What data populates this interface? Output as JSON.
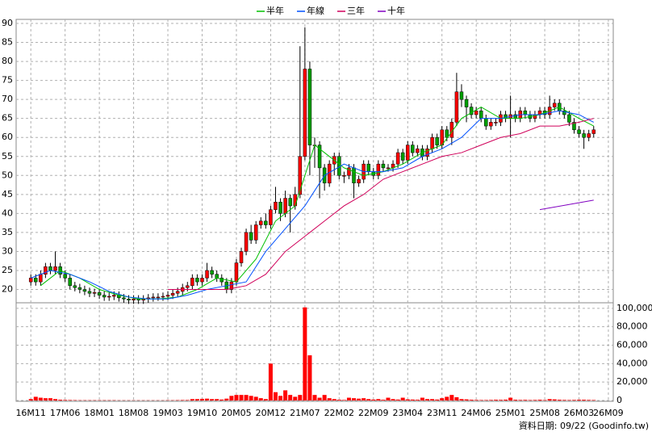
{
  "chart_data": {
    "type": "candlestick",
    "grid": true,
    "up_color": "#ff0000",
    "down_color": "#00a000",
    "volume_color": "#ff0000",
    "note": "資料日期: 09/22  (Goodinfo.tw)",
    "series": [
      {
        "name": "半年",
        "color": "#00c000",
        "x": [
          2,
          6,
          10,
          14,
          18,
          22,
          26,
          30,
          34,
          38,
          42,
          46,
          50,
          54,
          56,
          58,
          60,
          64,
          68,
          72,
          76,
          80,
          84,
          88,
          92,
          96,
          100,
          104,
          108,
          112,
          115
        ],
        "values": [
          21,
          25,
          23,
          20,
          18.5,
          17.5,
          17.5,
          18,
          20,
          23,
          22,
          28,
          38,
          42,
          50,
          58,
          56,
          52,
          50,
          51,
          53,
          56,
          58,
          65,
          68,
          65,
          65,
          66,
          68,
          65,
          63
        ]
      },
      {
        "name": "年線",
        "color": "#0050ff",
        "x": [
          0,
          4,
          8,
          12,
          16,
          20,
          24,
          28,
          32,
          36,
          40,
          44,
          48,
          52,
          56,
          60,
          64,
          68,
          72,
          76,
          80,
          84,
          88,
          92,
          96,
          100,
          104,
          108,
          112,
          115
        ],
        "values": [
          23,
          25,
          24,
          22,
          19.5,
          18,
          17.5,
          17.5,
          18.5,
          20,
          21,
          22,
          30,
          36,
          42,
          50,
          53,
          51,
          51,
          52,
          55,
          57,
          60,
          65,
          65,
          66,
          66,
          67,
          66,
          64
        ]
      },
      {
        "name": "三年",
        "color": "#d0005a",
        "x": [
          28,
          32,
          36,
          40,
          44,
          48,
          52,
          56,
          60,
          64,
          68,
          72,
          76,
          80,
          84,
          88,
          92,
          96,
          100,
          104,
          108,
          112,
          115
        ],
        "values": [
          20,
          20,
          20,
          20,
          21,
          24,
          30,
          34,
          38,
          42,
          45,
          49,
          51,
          53,
          55,
          56,
          58,
          60,
          61,
          63,
          63,
          64,
          65
        ]
      },
      {
        "name": "十年",
        "color": "#8000c0",
        "x": [
          104,
          115
        ],
        "values": [
          41,
          43.5
        ]
      }
    ],
    "open": [
      22,
      23,
      22,
      24,
      26,
      25,
      26,
      24,
      23,
      21,
      20.5,
      20,
      19.5,
      19,
      19.2,
      18.5,
      18,
      18.2,
      18.5,
      17.8,
      17.5,
      17.2,
      17.5,
      17.2,
      17.5,
      17.8,
      18,
      18,
      18.2,
      18.5,
      19,
      19.5,
      20.5,
      21,
      23,
      22,
      23,
      25,
      24,
      23,
      22,
      20,
      22,
      27,
      30,
      35,
      33,
      37,
      38,
      37,
      41,
      43,
      40,
      44,
      42,
      45,
      55,
      78,
      58,
      58,
      52,
      48,
      53,
      55,
      50,
      50,
      52,
      48,
      49,
      53,
      51,
      50,
      53,
      52,
      52,
      53,
      56,
      54,
      58,
      56,
      57,
      55,
      57,
      60,
      58,
      62,
      60,
      64,
      72,
      70,
      68,
      66,
      67,
      65,
      63,
      64,
      64,
      66,
      65,
      66,
      65,
      67,
      66,
      65,
      66,
      67,
      66,
      68,
      69,
      67,
      66,
      64,
      62,
      61,
      60,
      61
    ],
    "high": [
      24,
      24,
      25,
      27,
      27,
      30,
      27,
      25,
      24,
      22,
      21.5,
      21,
      20.5,
      20.2,
      20.2,
      19.5,
      19.2,
      19.5,
      19.5,
      18.8,
      18.5,
      18.5,
      18.5,
      18.5,
      18.8,
      19,
      19,
      19.2,
      19.5,
      20,
      20.5,
      21.5,
      22,
      24,
      24,
      24,
      27,
      26,
      25,
      24,
      23,
      23,
      28,
      31,
      36,
      37,
      38,
      39,
      40,
      42,
      47,
      44,
      46,
      45,
      47,
      84,
      89,
      80,
      60,
      59,
      53,
      54,
      56,
      56,
      51,
      53,
      53,
      50,
      54,
      54,
      52,
      54,
      54,
      53,
      54,
      57,
      57,
      59,
      59,
      58,
      58,
      58,
      61,
      61,
      63,
      63,
      65,
      77,
      74,
      71,
      69,
      68,
      68,
      66,
      65,
      65,
      67,
      67,
      71,
      67,
      68,
      68,
      67,
      67,
      68,
      68,
      71,
      70,
      70,
      68,
      67,
      65,
      63,
      62,
      62,
      63
    ],
    "low": [
      21,
      21,
      21,
      23,
      24,
      24,
      23,
      22,
      20,
      19.5,
      19,
      18.5,
      18,
      18,
      17.5,
      17,
      17,
      17.2,
      16.8,
      16.5,
      16.2,
      16.2,
      16.2,
      16.2,
      16.5,
      16.8,
      17,
      17,
      17.2,
      17.5,
      18,
      18.5,
      19.5,
      20,
      21,
      21,
      22,
      23,
      22,
      21,
      19,
      19,
      21,
      26,
      29,
      32,
      32,
      36,
      36,
      36,
      40,
      38,
      39,
      35,
      41,
      44,
      54,
      50,
      52,
      44,
      46,
      47,
      50,
      49,
      48,
      49,
      44,
      47,
      48,
      50,
      49,
      49,
      51,
      51,
      51,
      52,
      53,
      53,
      55,
      55,
      54,
      54,
      56,
      57,
      57,
      59,
      58,
      63,
      68,
      64,
      65,
      65,
      64,
      62,
      62,
      63,
      63,
      64,
      60,
      64,
      64,
      65,
      64,
      64,
      65,
      65,
      65,
      67,
      66,
      65,
      63,
      61,
      60,
      57,
      59,
      60
    ],
    "close": [
      23,
      22,
      24,
      26,
      25,
      26,
      24,
      23,
      21,
      20.5,
      20,
      19.5,
      19,
      19.2,
      18.5,
      18,
      18.2,
      18.5,
      17.8,
      17.5,
      17.2,
      17.5,
      17.2,
      17.5,
      17.8,
      18,
      18,
      18.2,
      18.5,
      19,
      19.5,
      20.5,
      21,
      23,
      22,
      23,
      25,
      24,
      23,
      22,
      20,
      22,
      27,
      30,
      35,
      33,
      37,
      38,
      37,
      41,
      43,
      40,
      44,
      42,
      45,
      55,
      78,
      58,
      58,
      52,
      48,
      53,
      55,
      50,
      50,
      52,
      48,
      49,
      53,
      51,
      50,
      53,
      52,
      52,
      53,
      56,
      54,
      58,
      56,
      57,
      55,
      57,
      60,
      58,
      62,
      60,
      64,
      72,
      70,
      68,
      66,
      67,
      65,
      63,
      64,
      64,
      66,
      65,
      66,
      65,
      67,
      66,
      65,
      66,
      67,
      66,
      68,
      69,
      67,
      66,
      64,
      62,
      61,
      60,
      61,
      62
    ],
    "volume": [
      1500,
      4000,
      3000,
      2500,
      2500,
      1500,
      800,
      600,
      500,
      400,
      300,
      300,
      300,
      300,
      300,
      300,
      300,
      300,
      200,
      200,
      200,
      200,
      200,
      200,
      200,
      200,
      200,
      200,
      300,
      300,
      400,
      500,
      500,
      1500,
      1500,
      1800,
      2000,
      1500,
      1500,
      1000,
      2000,
      5000,
      6000,
      6000,
      6000,
      5000,
      4000,
      2500,
      1500,
      40000,
      9000,
      5000,
      11000,
      6000,
      4000,
      6000,
      101000,
      49000,
      6000,
      3000,
      6000,
      2500,
      1500,
      800,
      600,
      3000,
      2500,
      2000,
      2500,
      1500,
      1000,
      1500,
      800,
      3000,
      1500,
      1000,
      3000,
      1200,
      1000,
      800,
      3000,
      1500,
      1500,
      1000,
      2500,
      4000,
      6000,
      3500,
      1500,
      1200,
      800,
      600,
      500,
      500,
      600,
      800,
      700,
      900,
      3000,
      800,
      600,
      700,
      500,
      600,
      800,
      500,
      1500,
      1200,
      800,
      600,
      500,
      600,
      800,
      800,
      600,
      500
    ],
    "xlim": [
      -3,
      119
    ],
    "xticks": [
      {
        "value": 0,
        "label": "16M11"
      },
      {
        "value": 7,
        "label": "17M06"
      },
      {
        "value": 14,
        "label": "18M01"
      },
      {
        "value": 21,
        "label": "18M08"
      },
      {
        "value": 28,
        "label": "19M03"
      },
      {
        "value": 35,
        "label": "19M10"
      },
      {
        "value": 42,
        "label": "20M05"
      },
      {
        "value": 49,
        "label": "20M12"
      },
      {
        "value": 56,
        "label": "21M07"
      },
      {
        "value": 63,
        "label": "22M02"
      },
      {
        "value": 70,
        "label": "22M09"
      },
      {
        "value": 77,
        "label": "23M04"
      },
      {
        "value": 84,
        "label": "23M11"
      },
      {
        "value": 91,
        "label": "24M06"
      },
      {
        "value": 98,
        "label": "25M01"
      },
      {
        "value": 105,
        "label": "25M08"
      },
      {
        "value": 112,
        "label": "26M03"
      },
      {
        "value": 118,
        "label": "26M09"
      }
    ],
    "ylim": [
      16.5,
      90
    ],
    "yticks": [
      20,
      25,
      30,
      35,
      40,
      45,
      50,
      55,
      60,
      65,
      70,
      75,
      80,
      85,
      90
    ],
    "volume_ylim": [
      0,
      106000
    ],
    "volume_yticks": [
      0,
      {
        "value": 20000,
        "label": "20,000"
      },
      {
        "value": 40000,
        "label": "40,000"
      },
      {
        "value": 60000,
        "label": "60,000"
      },
      {
        "value": 80000,
        "label": "80,000"
      },
      {
        "value": 100000,
        "label": "100,000"
      }
    ]
  }
}
